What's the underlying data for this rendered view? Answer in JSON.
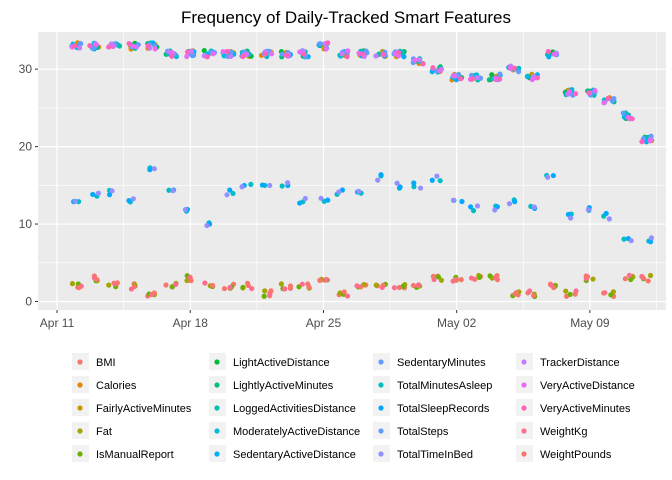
{
  "chart_data": {
    "type": "scatter",
    "title": "Frequency of Daily-Tracked Smart Features",
    "xlabel": "",
    "ylabel": "",
    "x_ticks": [
      "Apr 11",
      "Apr 18",
      "Apr 25",
      "May 02",
      "May 09"
    ],
    "y_ticks": [
      0,
      10,
      20,
      30
    ],
    "xlim": [
      "2016-04-10",
      "2016-05-13"
    ],
    "ylim": [
      -1.1,
      34.8
    ],
    "grid": true,
    "legend_position": "bottom",
    "dates": [
      "2016-04-12",
      "2016-04-13",
      "2016-04-14",
      "2016-04-15",
      "2016-04-16",
      "2016-04-17",
      "2016-04-18",
      "2016-04-19",
      "2016-04-20",
      "2016-04-21",
      "2016-04-22",
      "2016-04-23",
      "2016-04-24",
      "2016-04-25",
      "2016-04-26",
      "2016-04-27",
      "2016-04-28",
      "2016-04-29",
      "2016-04-30",
      "2016-05-01",
      "2016-05-02",
      "2016-05-03",
      "2016-05-04",
      "2016-05-05",
      "2016-05-06",
      "2016-05-07",
      "2016-05-08",
      "2016-05-09",
      "2016-05-10",
      "2016-05-11",
      "2016-05-12"
    ],
    "activity_counts": [
      33,
      33,
      33,
      33,
      33,
      32,
      32,
      32,
      32,
      32,
      32,
      32,
      32,
      33,
      32,
      32,
      32,
      32,
      31,
      30,
      29,
      29,
      29,
      30,
      29,
      32,
      27,
      27,
      26,
      24,
      21
    ],
    "sleep_counts": [
      13,
      14,
      14,
      13,
      17,
      14,
      12,
      10,
      14,
      15,
      15,
      15,
      13,
      13,
      14,
      14,
      16,
      15,
      15,
      16,
      13,
      12,
      12,
      13,
      12,
      16,
      11,
      12,
      11,
      8,
      8
    ],
    "weight_counts": [
      2,
      3,
      2,
      2,
      1,
      2,
      3,
      2,
      2,
      2,
      1,
      2,
      2,
      3,
      1,
      2,
      2,
      2,
      2,
      3,
      3,
      3,
      3,
      1,
      1,
      2,
      1,
      3,
      1,
      3,
      3
    ],
    "series": [
      {
        "name": "BMI",
        "color": "#F8766D",
        "group": "weight"
      },
      {
        "name": "Calories",
        "color": "#E58700",
        "group": "activity"
      },
      {
        "name": "FairlyActiveMinutes",
        "color": "#C99800",
        "group": "activity"
      },
      {
        "name": "Fat",
        "color": "#A3A500",
        "group": "weight"
      },
      {
        "name": "IsManualReport",
        "color": "#6BB100",
        "group": "weight"
      },
      {
        "name": "LightActiveDistance",
        "color": "#00BA38",
        "group": "activity"
      },
      {
        "name": "LightlyActiveMinutes",
        "color": "#00BF7D",
        "group": "activity"
      },
      {
        "name": "LoggedActivitiesDistance",
        "color": "#00C0AF",
        "group": "activity"
      },
      {
        "name": "ModeratelyActiveDistance",
        "color": "#00BCD8",
        "group": "activity"
      },
      {
        "name": "SedentaryActiveDistance",
        "color": "#00B0F6",
        "group": "activity"
      },
      {
        "name": "SedentaryMinutes",
        "color": "#619CFF",
        "group": "activity"
      },
      {
        "name": "TotalMinutesAsleep",
        "color": "#00BFC4",
        "group": "sleep"
      },
      {
        "name": "TotalSleepRecords",
        "color": "#00A9FF",
        "group": "sleep"
      },
      {
        "name": "TotalSteps",
        "color": "#619CFF",
        "group": "activity"
      },
      {
        "name": "TotalTimeInBed",
        "color": "#9590FF",
        "group": "sleep"
      },
      {
        "name": "TrackerDistance",
        "color": "#C77CFF",
        "group": "activity"
      },
      {
        "name": "VeryActiveDistance",
        "color": "#E76BF3",
        "group": "activity"
      },
      {
        "name": "VeryActiveMinutes",
        "color": "#FF62BC",
        "group": "activity"
      },
      {
        "name": "WeightKg",
        "color": "#FF6C91",
        "group": "weight"
      },
      {
        "name": "WeightPounds",
        "color": "#F8766D",
        "group": "weight"
      }
    ]
  }
}
